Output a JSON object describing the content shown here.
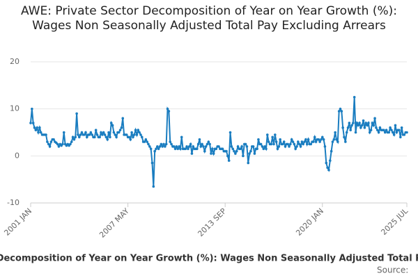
{
  "chart_data": {
    "type": "line",
    "title": "AWE: Private Sector Decomposition of Year on Year Growth (%): Wages Non Seasonally Adjusted Total Pay Excluding Arrears",
    "source": "Source:",
    "categories": [
      "2001 JAN",
      null,
      null,
      null,
      null,
      null,
      null,
      null,
      null,
      null,
      null,
      null,
      null,
      null,
      null,
      null,
      null,
      null,
      null,
      null,
      null,
      null,
      null,
      null,
      null,
      null,
      null,
      null,
      null,
      null,
      null,
      null,
      null,
      null,
      null,
      null,
      null,
      null,
      null,
      null,
      null,
      null,
      null,
      null,
      null,
      null,
      null,
      null,
      null,
      null,
      null,
      null,
      null,
      null,
      null,
      null,
      null,
      null,
      null,
      null,
      null,
      null,
      null,
      null,
      null,
      null,
      null,
      null,
      null,
      null,
      null,
      null,
      null,
      null,
      null,
      null,
      "2007 MAY",
      null,
      null,
      null,
      null,
      null,
      null,
      null,
      null,
      null,
      null,
      null,
      null,
      null,
      null,
      null,
      null,
      null,
      null,
      null,
      null,
      null,
      null,
      null,
      null,
      null,
      null,
      null,
      null,
      null,
      null,
      null,
      null,
      null,
      null,
      null,
      null,
      null,
      null,
      null,
      null,
      null,
      null,
      null,
      null,
      null,
      null,
      null,
      null,
      null,
      null,
      null,
      null,
      null,
      null,
      null,
      null,
      null,
      null,
      null,
      null,
      null,
      null,
      null,
      null,
      null,
      null,
      null,
      null,
      null,
      null,
      null,
      null,
      null,
      null,
      null,
      "2013 SEP",
      null,
      null,
      null,
      null,
      null,
      null,
      null,
      null,
      null,
      null,
      null,
      null,
      null,
      null,
      null,
      null,
      null,
      null,
      null,
      null,
      null,
      null,
      null,
      null,
      null,
      null,
      null,
      null,
      null,
      null,
      null,
      null,
      null,
      null,
      null,
      null,
      null,
      null,
      null,
      null,
      null,
      null,
      null,
      null,
      null,
      null,
      null,
      null,
      null,
      null,
      null,
      null,
      null,
      null,
      null,
      null,
      null,
      null,
      null,
      null,
      null,
      null,
      null,
      null,
      null,
      null,
      null,
      null,
      null,
      null,
      null,
      null,
      null,
      null,
      null,
      "2020 JAN",
      null,
      null,
      null,
      null,
      null,
      null,
      null,
      null,
      null,
      null,
      null,
      null,
      null,
      null,
      null,
      null,
      null,
      null,
      null,
      null,
      null,
      null,
      null,
      null,
      null,
      null,
      null,
      null,
      null,
      null,
      null,
      null,
      null,
      null,
      null,
      null,
      null,
      null,
      null,
      null,
      null,
      null,
      null,
      null,
      null,
      null,
      null,
      null,
      null,
      null,
      null,
      null,
      null,
      null,
      null,
      null,
      null,
      null,
      null,
      null,
      null,
      null,
      null,
      null,
      null,
      "2025 JUL"
    ],
    "series": [
      {
        "name": "AWE: Private Sector Decomposition of Year on Year Growth (%): Wages Non Seasonally Adjusted Total Pay Excluding Arrears",
        "color": "#1a7dc0",
        "values": [
          7,
          10,
          7,
          6,
          5.5,
          6,
          5,
          6,
          5,
          4.5,
          4.5,
          4.5,
          4.5,
          3,
          2.5,
          2,
          3,
          3.5,
          3.5,
          3,
          2.8,
          2.5,
          2,
          2.5,
          2.2,
          2.5,
          5,
          2.5,
          2.2,
          2.5,
          2.2,
          2.5,
          3,
          4,
          3.5,
          4,
          9,
          4.5,
          4,
          4.5,
          5,
          4.5,
          4.5,
          5,
          4,
          4.5,
          4.5,
          5,
          4.5,
          4,
          4,
          5.5,
          4.5,
          4,
          4,
          5,
          4.5,
          5,
          4.5,
          4,
          3.5,
          5,
          4,
          7,
          6.5,
          5,
          4.5,
          4,
          5,
          5,
          5.5,
          6,
          8,
          4.5,
          4.5,
          4.5,
          4,
          4,
          3.5,
          5,
          4,
          4.5,
          5.5,
          4.5,
          5.5,
          5,
          4.5,
          4,
          3,
          3,
          3.5,
          3,
          2.5,
          2,
          1.5,
          -1.5,
          -6.5,
          1,
          1.5,
          2,
          1.5,
          2,
          2.5,
          2,
          2.5,
          2,
          2.5,
          10,
          9.5,
          3,
          2.5,
          2,
          2,
          1.5,
          2,
          1.5,
          2,
          1.5,
          4,
          1.5,
          1.5,
          1.5,
          2,
          1.5,
          2,
          2.5,
          0.5,
          2,
          1.5,
          1.5,
          1.5,
          2.5,
          3.5,
          2,
          2.5,
          2,
          1,
          2,
          2.5,
          3,
          2.5,
          0.5,
          1.5,
          0.5,
          1.5,
          1.5,
          2,
          2,
          1.5,
          1.5,
          1.5,
          1,
          1,
          1,
          0,
          -1,
          5,
          2,
          1.5,
          1,
          0.5,
          1,
          2,
          1.5,
          1.5,
          2,
          0,
          2.5,
          2.5,
          2,
          -1.5,
          0.5,
          1,
          2,
          2,
          0.5,
          1.5,
          1.5,
          3.5,
          2.5,
          2.5,
          2,
          1.5,
          2,
          1.5,
          4.5,
          3,
          2.5,
          2.5,
          4,
          2.5,
          4.5,
          3,
          1.5,
          2,
          3.5,
          2.5,
          2.5,
          3,
          2,
          2.5,
          2.5,
          2,
          2.5,
          3.5,
          3,
          2.5,
          1.5,
          2,
          3,
          2.5,
          2,
          3,
          2.5,
          3,
          3.5,
          2.5,
          3.5,
          2.5,
          2.5,
          3,
          3,
          4,
          3,
          3.5,
          3.5,
          3,
          3.5,
          4,
          3.5,
          2,
          -1.5,
          -2.5,
          -3,
          -1,
          1,
          3,
          3.5,
          5,
          3.5,
          3,
          9.5,
          10,
          9.5,
          6,
          4,
          3,
          5,
          6,
          7,
          5.5,
          6.5,
          7,
          12.5,
          5,
          7,
          6.5,
          7,
          6,
          6.5,
          7.5,
          6,
          7,
          6.5,
          7,
          5,
          5.5,
          7,
          6.5,
          8,
          6,
          5.5,
          5,
          6,
          5.5,
          5.5,
          5.5,
          5,
          5.5,
          5,
          5,
          6,
          5.5,
          5,
          4.5,
          6.5,
          5,
          5.5,
          5.5,
          4,
          6,
          4.5,
          4.5,
          5,
          5
        ]
      }
    ],
    "ylim": [
      -10,
      20
    ],
    "yticks": [
      -10,
      0,
      10,
      20
    ],
    "grid": true
  }
}
